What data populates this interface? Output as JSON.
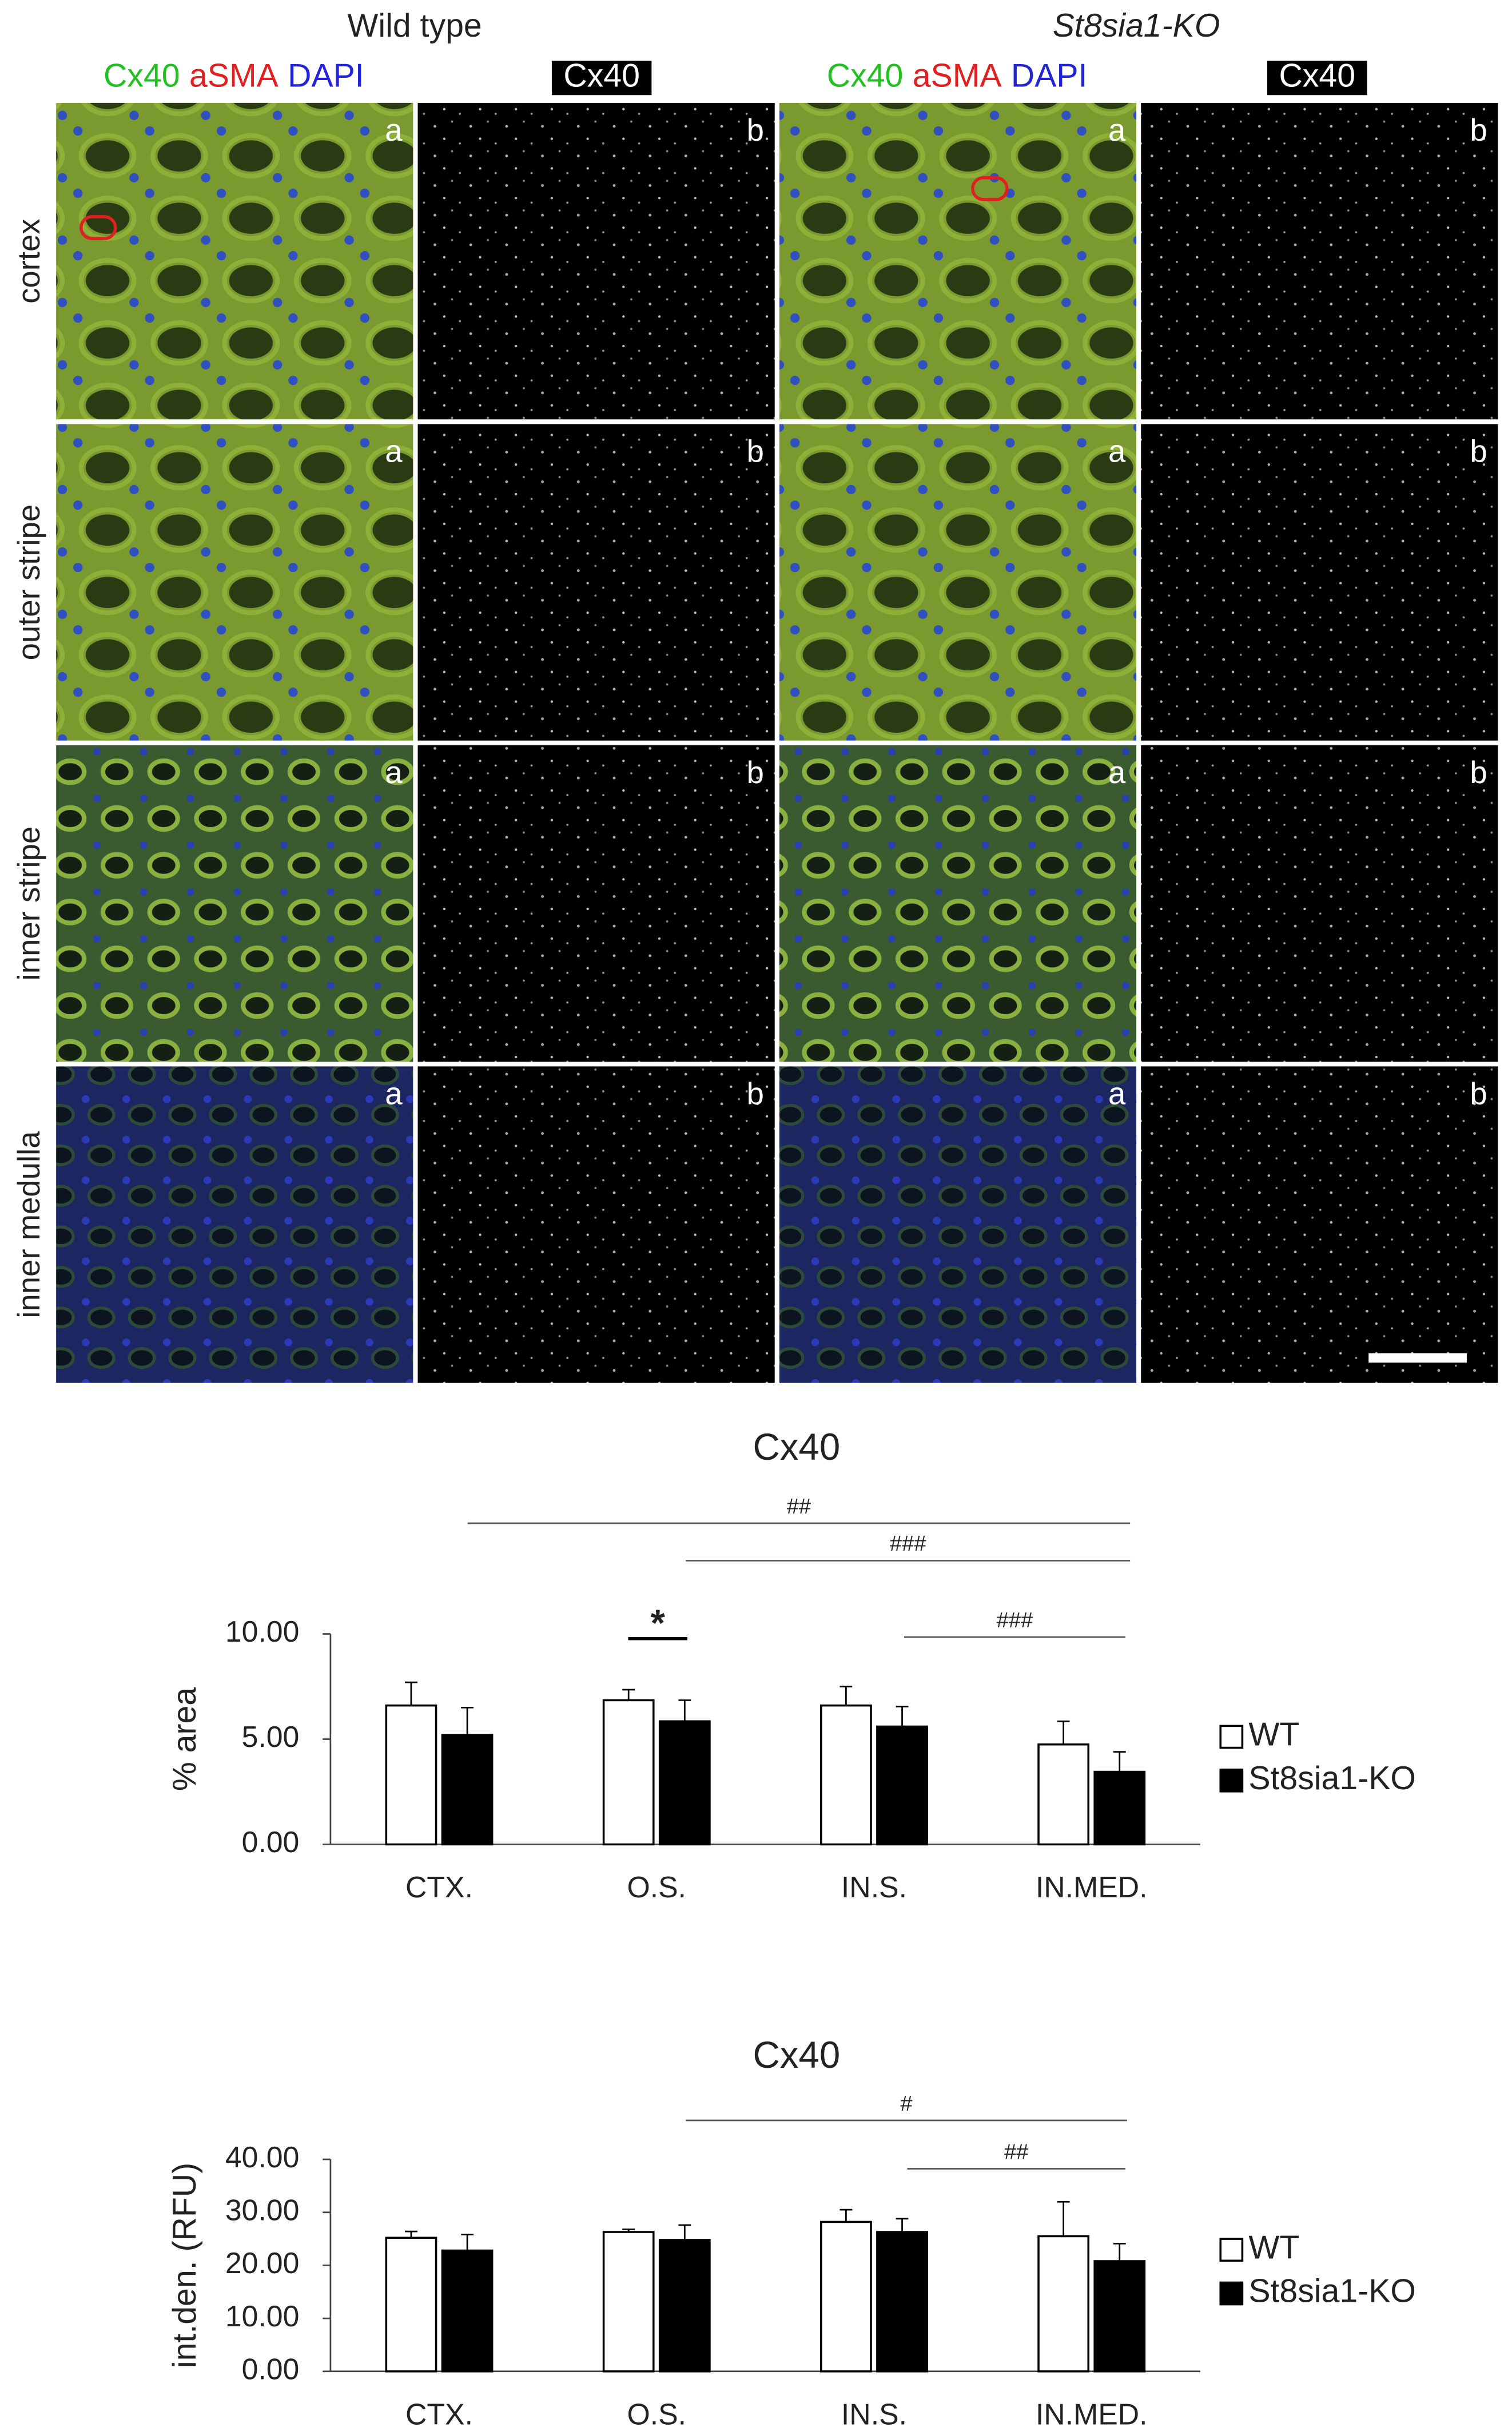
{
  "figure": {
    "groups": [
      "Wild type",
      "St8sia1-KO"
    ],
    "stains": [
      "Cx40",
      "aSMA",
      "DAPI"
    ],
    "stain_colors": [
      "#22c020",
      "#e02020",
      "#2323d8"
    ],
    "single_channel": "Cx40",
    "panel_letters": [
      "a",
      "b"
    ],
    "regions": [
      "cortex",
      "outer stripe",
      "inner stripe",
      "inner medulla"
    ]
  },
  "chart_data": [
    {
      "type": "bar",
      "title": "Cx40",
      "y_label": "% area",
      "categories": [
        "CTX.",
        "O.S.",
        "IN.S.",
        "IN.MED."
      ],
      "series": [
        {
          "name": "WT",
          "color": "#ffffff",
          "values": [
            6.6,
            6.85,
            6.6,
            4.75
          ],
          "errors": [
            1.1,
            0.5,
            0.9,
            1.1
          ]
        },
        {
          "name": "St8sia1-KO",
          "color": "#000000",
          "values": [
            5.2,
            5.85,
            5.6,
            3.45
          ],
          "errors": [
            1.3,
            1.0,
            0.95,
            0.95
          ]
        }
      ],
      "ylim": [
        0,
        10
      ],
      "yticks": [
        {
          "value": 0,
          "label": "0.00"
        },
        {
          "value": 5,
          "label": "5.00"
        },
        {
          "value": 10,
          "label": "10.00"
        }
      ],
      "annotations": [
        "##",
        "###",
        "###",
        "*"
      ],
      "legend": "right"
    },
    {
      "type": "bar",
      "title": "Cx40",
      "y_label": "int.den. (RFU)",
      "categories": [
        "CTX.",
        "O.S.",
        "IN.S.",
        "IN.MED."
      ],
      "series": [
        {
          "name": "WT",
          "color": "#ffffff",
          "values": [
            25.2,
            26.3,
            28.2,
            25.5
          ],
          "errors": [
            1.2,
            0.5,
            2.3,
            6.5
          ]
        },
        {
          "name": "St8sia1-KO",
          "color": "#000000",
          "values": [
            22.8,
            24.8,
            26.3,
            20.8
          ],
          "errors": [
            3.0,
            2.8,
            2.5,
            3.3
          ]
        }
      ],
      "ylim": [
        0,
        40
      ],
      "yticks": [
        {
          "value": 0,
          "label": "0.00"
        },
        {
          "value": 10,
          "label": "10.00"
        },
        {
          "value": 20,
          "label": "20.00"
        },
        {
          "value": 30,
          "label": "30.00"
        },
        {
          "value": 40,
          "label": "40.00"
        }
      ],
      "annotations": [
        "#",
        "##"
      ],
      "legend": "right"
    }
  ]
}
